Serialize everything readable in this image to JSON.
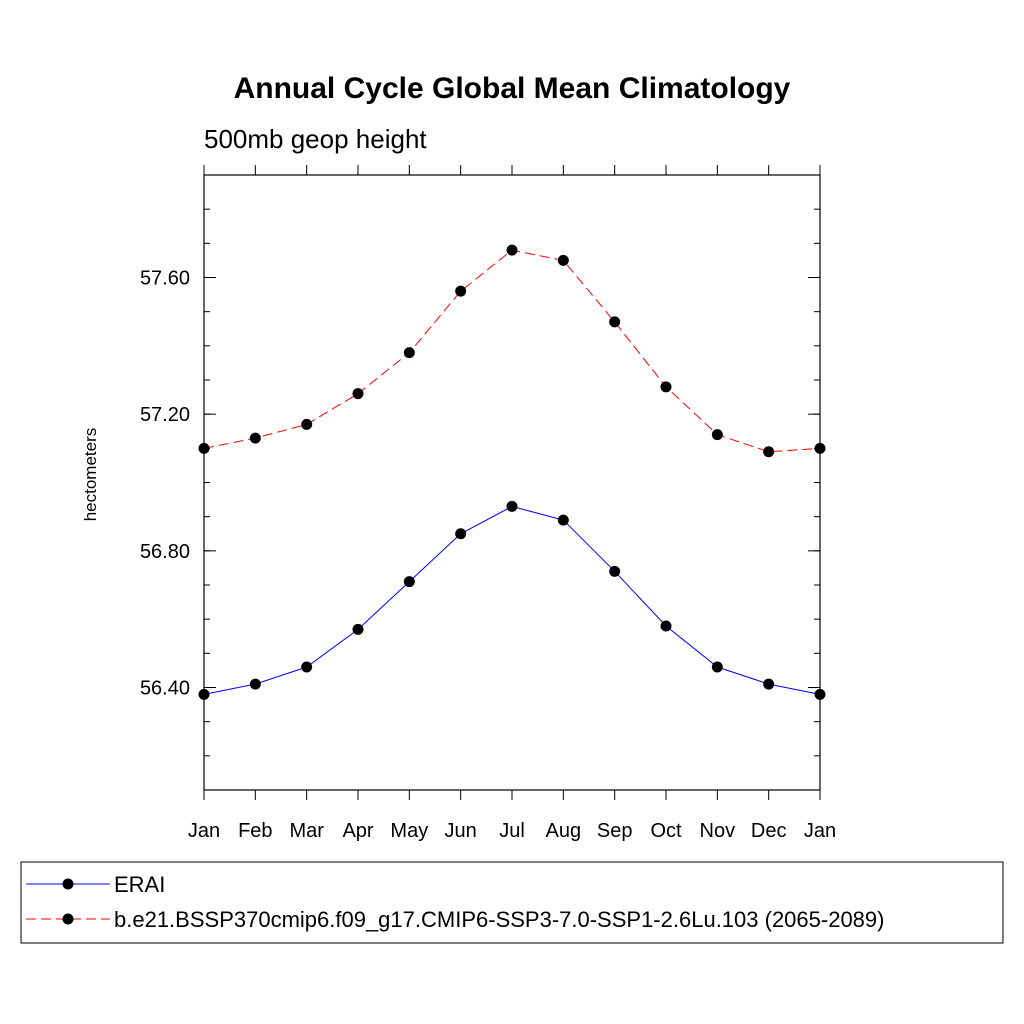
{
  "chart_data": {
    "type": "line",
    "title": "Annual Cycle Global Mean Climatology",
    "subtitle": "500mb geop height",
    "xlabel": "",
    "ylabel": "hectometers",
    "categories": [
      "Jan",
      "Feb",
      "Mar",
      "Apr",
      "May",
      "Jun",
      "Jul",
      "Aug",
      "Sep",
      "Oct",
      "Nov",
      "Dec",
      "Jan"
    ],
    "ylim": [
      56.1,
      57.9
    ],
    "y_major_ticks": [
      56.4,
      56.8,
      57.2,
      57.6
    ],
    "y_tick_labels": [
      "56.40",
      "56.80",
      "57.20",
      "57.60"
    ],
    "y_minor_step": 0.1,
    "grid": false,
    "legend_placement": "bottom",
    "series": [
      {
        "name": "ERAI",
        "color": "#0000ff",
        "dash": "solid",
        "values": [
          56.38,
          56.41,
          56.46,
          56.57,
          56.71,
          56.85,
          56.93,
          56.89,
          56.74,
          56.58,
          56.46,
          56.41,
          56.38
        ]
      },
      {
        "name": "b.e21.BSSP370cmip6.f09_g17.CMIP6-SSP3-7.0-SSP1-2.6Lu.103 (2065-2089)",
        "color": "#ff0000",
        "dash": "dashed",
        "values": [
          57.1,
          57.13,
          57.17,
          57.26,
          57.38,
          57.56,
          57.68,
          57.65,
          57.47,
          57.28,
          57.14,
          57.09,
          57.1
        ]
      }
    ]
  }
}
